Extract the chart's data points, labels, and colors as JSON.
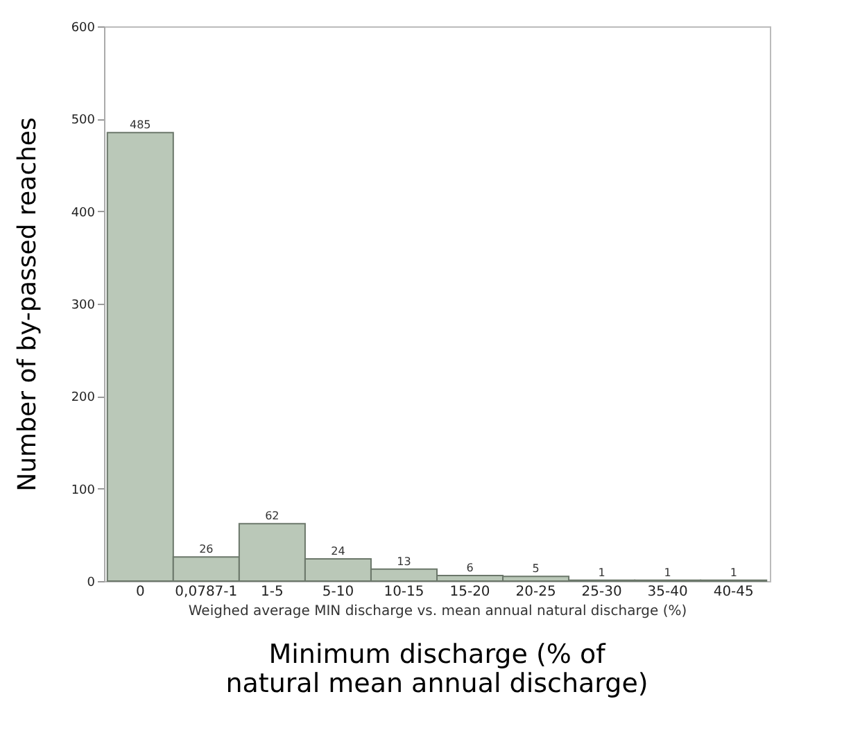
{
  "chart_data": {
    "type": "bar",
    "categories": [
      "0",
      "0,0787-1",
      "1-5",
      "5-10",
      "10-15",
      "15-20",
      "20-25",
      "25-30",
      "35-40",
      "40-45"
    ],
    "values": [
      485,
      26,
      62,
      24,
      13,
      6,
      5,
      1,
      1,
      1
    ],
    "color": "#bac8b8",
    "data_labels": true,
    "xlabel": "Weighed average MIN discharge vs. mean annual natural discharge (%)",
    "ylabel": "Number of by-passed reaches",
    "annotations": [
      "Minimum discharge (% of natural mean annual discharge)"
    ],
    "ylim": [
      0,
      600
    ],
    "yticks": [
      0,
      100,
      200,
      300,
      400,
      500,
      600
    ],
    "grid": false
  }
}
